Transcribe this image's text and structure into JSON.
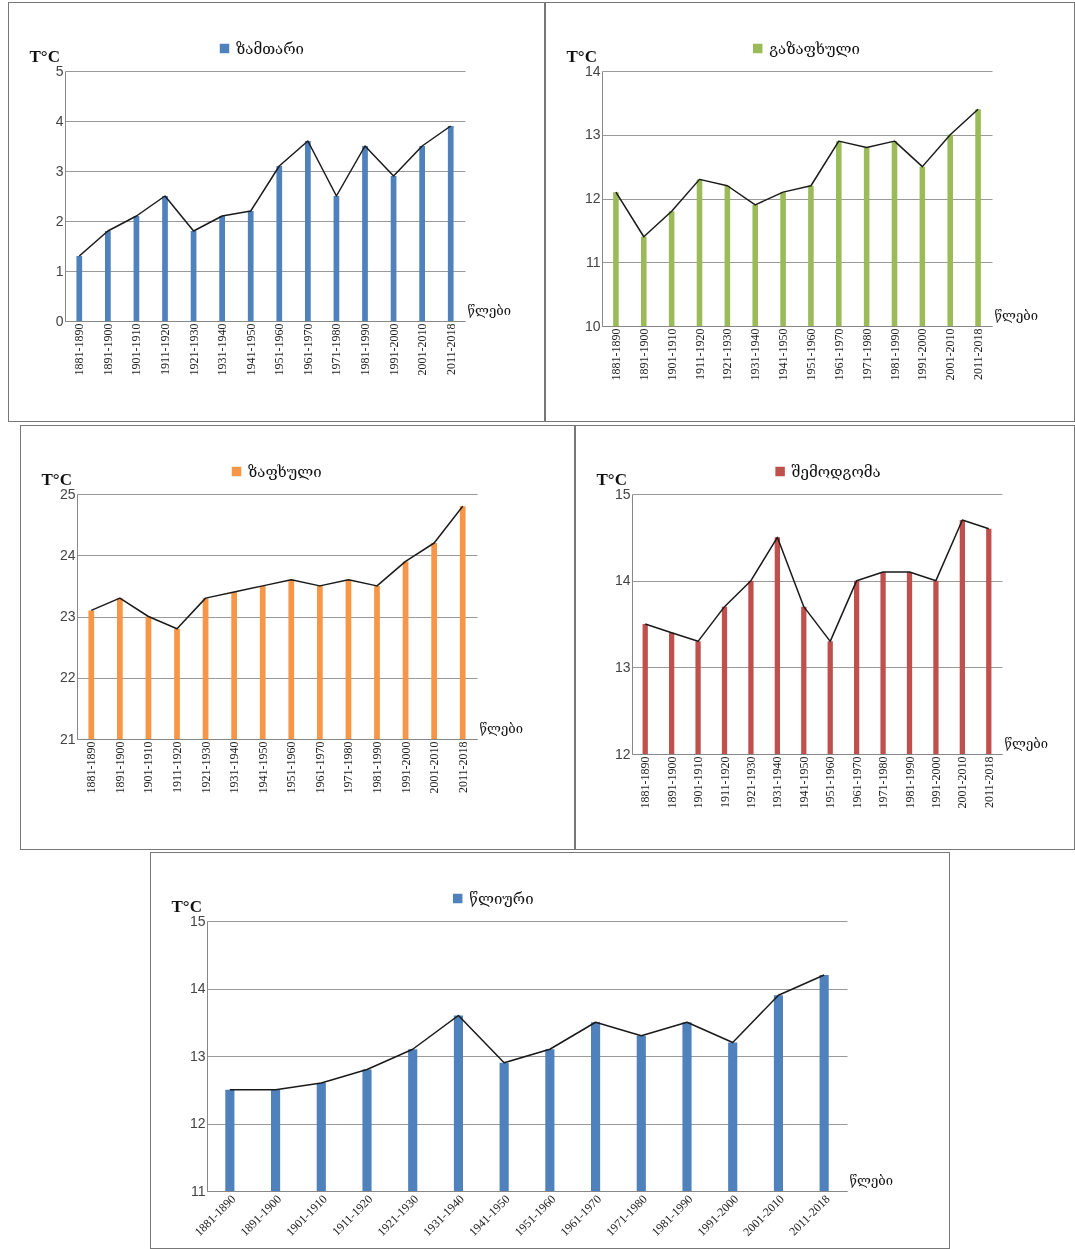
{
  "chart_data": [
    {
      "type": "bar",
      "ylabel": "T°C",
      "xlabel": "წლები",
      "legend": "top",
      "grid": "y",
      "ylim": [
        0,
        5
      ],
      "yticks": [
        0,
        1,
        2,
        3,
        4,
        5
      ],
      "categories": [
        "1881-1890",
        "1891-1900",
        "1901-1910",
        "1911-1920",
        "1921-1930",
        "1931-1940",
        "1941-1950",
        "1951-1960",
        "1961-1970",
        "1971-1980",
        "1981-1990",
        "1991-2000",
        "2001-2010",
        "2011-2018"
      ],
      "series": [
        {
          "name": "ზამთარი",
          "color": "#4f81bd",
          "values": [
            1.3,
            1.8,
            2.1,
            2.5,
            1.8,
            2.1,
            2.2,
            3.1,
            3.6,
            2.5,
            3.5,
            2.9,
            3.5,
            3.9
          ]
        },
        {
          "type": "line",
          "color": "#1a1a1a",
          "values": [
            1.3,
            1.8,
            2.1,
            2.5,
            1.8,
            2.1,
            2.2,
            3.1,
            3.6,
            2.5,
            3.5,
            2.9,
            3.5,
            3.9
          ]
        }
      ]
    },
    {
      "type": "bar",
      "ylabel": "T°C",
      "xlabel": "წლები",
      "legend": "top",
      "grid": "y",
      "ylim": [
        10,
        14
      ],
      "yticks": [
        10,
        11,
        12,
        13,
        14
      ],
      "categories": [
        "1881-1890",
        "1891-1900",
        "1901-1910",
        "1911-1920",
        "1921-1930",
        "1931-1940",
        "1941-1950",
        "1951-1960",
        "1961-1970",
        "1971-1980",
        "1981-1990",
        "1991-2000",
        "2001-2010",
        "2011-2018"
      ],
      "series": [
        {
          "name": "გაზაფხული",
          "color": "#9bbb59",
          "values": [
            12.1,
            11.4,
            11.8,
            12.3,
            12.2,
            11.9,
            12.1,
            12.2,
            12.9,
            12.8,
            12.9,
            12.5,
            13.0,
            13.4
          ]
        },
        {
          "type": "line",
          "color": "#1a1a1a",
          "values": [
            12.1,
            11.4,
            11.8,
            12.3,
            12.2,
            11.9,
            12.1,
            12.2,
            12.9,
            12.8,
            12.9,
            12.5,
            13.0,
            13.4
          ]
        }
      ]
    },
    {
      "type": "bar",
      "ylabel": "T°C",
      "xlabel": "წლები",
      "legend": "top",
      "grid": "y",
      "ylim": [
        21,
        25
      ],
      "yticks": [
        21,
        22,
        23,
        24,
        25
      ],
      "categories": [
        "1881-1890",
        "1891-1900",
        "1901-1910",
        "1911-1920",
        "1921-1930",
        "1931-1940",
        "1941-1950",
        "1951-1960",
        "1961-1970",
        "1971-1980",
        "1981-1990",
        "1991-2000",
        "2001-2010",
        "2011-2018"
      ],
      "series": [
        {
          "name": "ზაფხული",
          "color": "#f79646",
          "values": [
            23.1,
            23.3,
            23.0,
            22.8,
            23.3,
            23.4,
            23.5,
            23.6,
            23.5,
            23.6,
            23.5,
            23.9,
            24.2,
            24.8
          ]
        },
        {
          "type": "line",
          "color": "#1a1a1a",
          "values": [
            23.1,
            23.3,
            23.0,
            22.8,
            23.3,
            23.4,
            23.5,
            23.6,
            23.5,
            23.6,
            23.5,
            23.9,
            24.2,
            24.8
          ]
        }
      ]
    },
    {
      "type": "bar",
      "ylabel": "T°C",
      "xlabel": "წლები",
      "legend": "top",
      "grid": "y",
      "ylim": [
        12,
        15
      ],
      "yticks": [
        12,
        13,
        14,
        15
      ],
      "categories": [
        "1881-1890",
        "1891-1900",
        "1901-1910",
        "1911-1920",
        "1921-1930",
        "1931-1940",
        "1941-1950",
        "1951-1960",
        "1961-1970",
        "1971-1980",
        "1981-1990",
        "1991-2000",
        "2001-2010",
        "2011-2018"
      ],
      "series": [
        {
          "name": "შემოდგომა",
          "color": "#c0504d",
          "values": [
            13.5,
            13.4,
            13.3,
            13.7,
            14.0,
            14.5,
            13.7,
            13.3,
            14.0,
            14.1,
            14.1,
            14.0,
            14.7,
            14.6
          ]
        },
        {
          "type": "line",
          "color": "#1a1a1a",
          "values": [
            13.5,
            13.4,
            13.3,
            13.7,
            14.0,
            14.5,
            13.7,
            13.3,
            14.0,
            14.1,
            14.1,
            14.0,
            14.7,
            14.6
          ]
        }
      ]
    },
    {
      "type": "bar",
      "ylabel": "T°C",
      "xlabel": "წლები",
      "legend": "top",
      "grid": "y",
      "ylim": [
        11,
        15
      ],
      "yticks": [
        11,
        12,
        13,
        14,
        15
      ],
      "categories": [
        "1881-1890",
        "1891-1900",
        "1901-1910",
        "1911-1920",
        "1921-1930",
        "1931-1940",
        "1941-1950",
        "1951-1960",
        "1961-1970",
        "1971-1980",
        "1981-1990",
        "1991-2000",
        "2001-2010",
        "2011-2018"
      ],
      "series": [
        {
          "name": "წლიური",
          "color": "#4f81bd",
          "values": [
            12.5,
            12.5,
            12.6,
            12.8,
            13.1,
            13.6,
            12.9,
            13.1,
            13.5,
            13.3,
            13.5,
            13.2,
            13.9,
            14.2
          ]
        },
        {
          "type": "line",
          "color": "#1a1a1a",
          "values": [
            12.5,
            12.5,
            12.6,
            12.8,
            13.1,
            13.6,
            12.9,
            13.1,
            13.5,
            13.3,
            13.5,
            13.2,
            13.9,
            14.2
          ]
        }
      ]
    }
  ]
}
